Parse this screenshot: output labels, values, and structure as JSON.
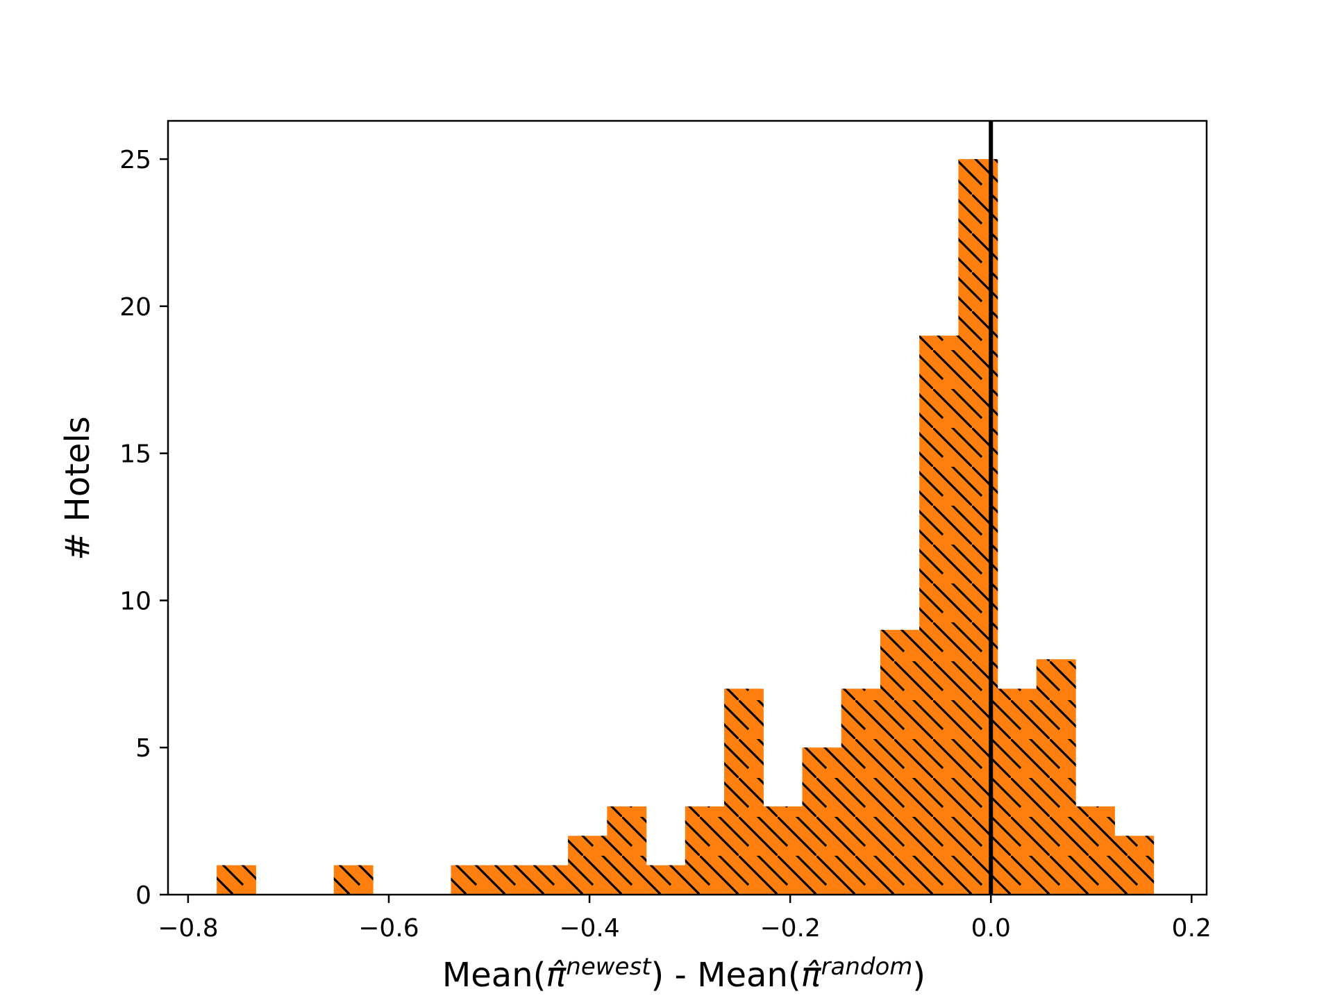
{
  "chart_data": {
    "type": "bar",
    "subtype": "histogram",
    "title": "",
    "xlabel": {
      "prefix": "Mean(",
      "symbol": "π̂",
      "sup1": "newest",
      "middle": ") - Mean(",
      "sup2": "random",
      "suffix": ")"
    },
    "ylabel": "# Hotels",
    "xlim": [
      -0.82,
      0.215
    ],
    "ylim": [
      0,
      26.3
    ],
    "xticks": [
      -0.8,
      -0.6,
      -0.4,
      -0.2,
      0.0,
      0.2
    ],
    "xtick_labels": [
      "−0.8",
      "−0.6",
      "−0.4",
      "−0.2",
      "0.0",
      "0.2"
    ],
    "yticks": [
      0,
      5,
      10,
      15,
      20,
      25
    ],
    "ytick_labels": [
      "0",
      "5",
      "10",
      "15",
      "20",
      "25"
    ],
    "bin_start": -0.7715,
    "bin_width": 0.0389,
    "counts": [
      1,
      0,
      0,
      1,
      0,
      0,
      1,
      1,
      1,
      2,
      3,
      1,
      3,
      7,
      3,
      5,
      7,
      9,
      19,
      25,
      7,
      8,
      3,
      2
    ],
    "vline_x": 0.0,
    "bar_color": "#ff7f0e",
    "hatch": "\\\\",
    "grid": false
  }
}
